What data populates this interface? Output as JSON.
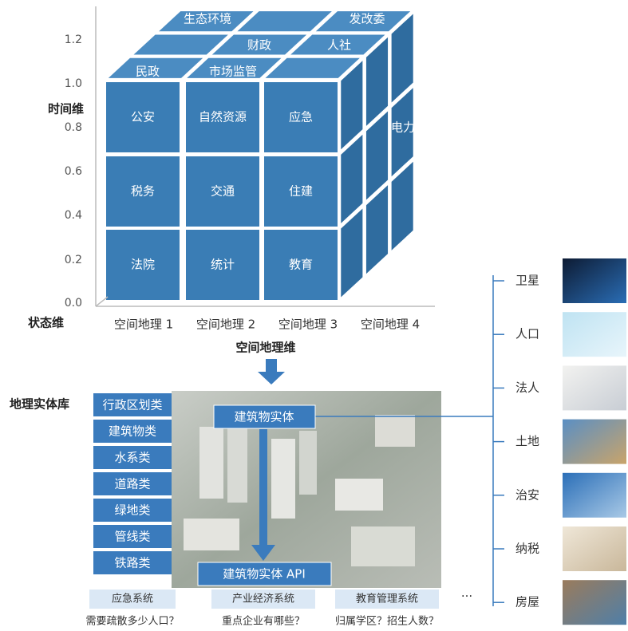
{
  "cube": {
    "top": [
      "生态环境",
      "发改委",
      "财政",
      "人社",
      "民政",
      "市场监管"
    ],
    "front": [
      "公安",
      "自然资源",
      "应急",
      "税务",
      "交通",
      "住建",
      "法院",
      "统计",
      "教育"
    ],
    "side": [
      "电力"
    ]
  },
  "axes": {
    "time_label": "时间维",
    "state_label": "状态维",
    "time_ticks": [
      "1.2",
      "1.0",
      "0.8",
      "0.6",
      "0.4",
      "0.2",
      "0.0"
    ],
    "space_ticks": [
      "空间地理 1",
      "空间地理 2",
      "空间地理 3",
      "空间地理 4"
    ],
    "space_label": "空间地理维"
  },
  "entity_library": {
    "title": "地理实体库",
    "categories": [
      "行政区划类",
      "建筑物类",
      "水系类",
      "道路类",
      "绿地类",
      "管线类",
      "铁路类"
    ],
    "entity": "建筑物实体",
    "api": "建筑物实体 API"
  },
  "applications": [
    {
      "name": "应急系统",
      "question": "需要疏散多少人口？"
    },
    {
      "name": "产业经济系统",
      "question": "重点企业有哪些？"
    },
    {
      "name": "教育管理系统",
      "question": "归属学区？招生人数？"
    }
  ],
  "ellipsis": "···",
  "sources": [
    "卫星",
    "人口",
    "法人",
    "土地",
    "治安",
    "纳税",
    "房屋"
  ]
}
